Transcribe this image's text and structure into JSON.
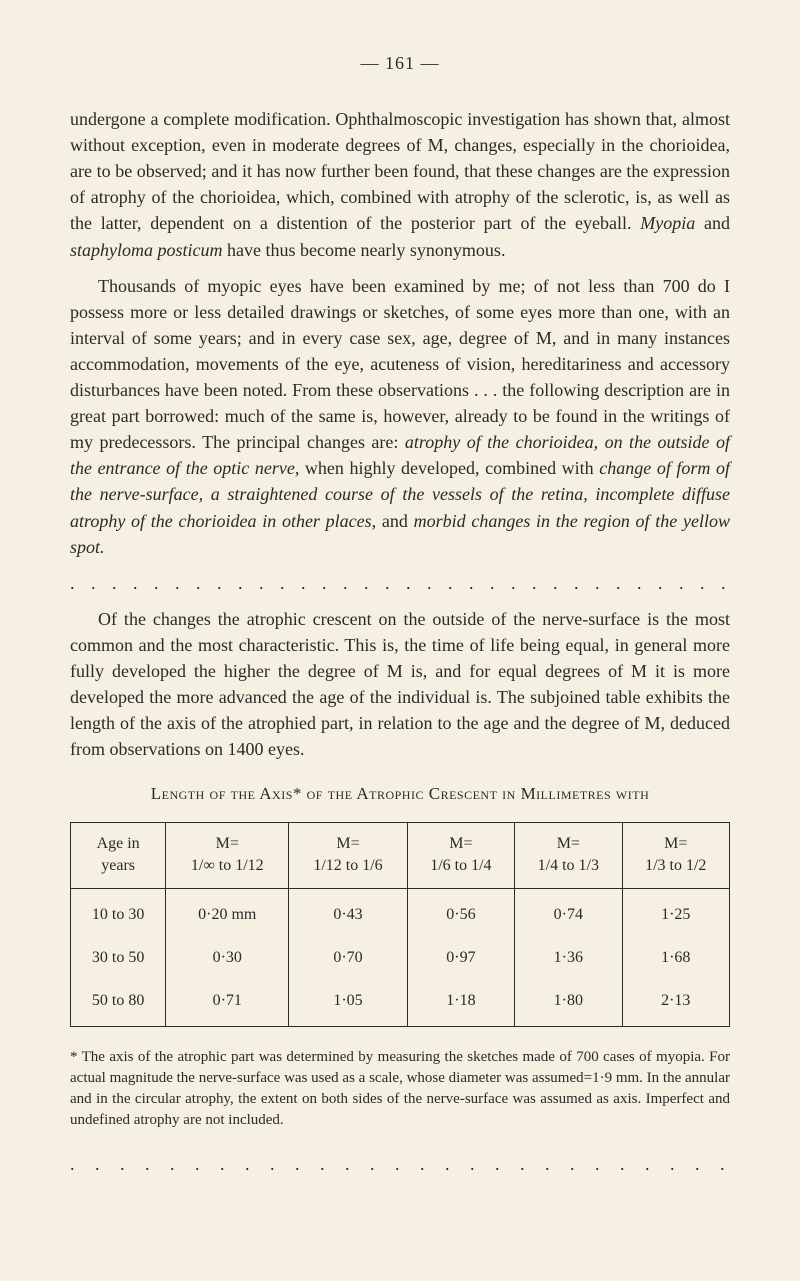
{
  "page_number": "— 161 —",
  "para1": "undergone a complete modification. Ophthalmoscopic investigation has shown that, almost without exception, even in moderate degrees of M, changes, especially in the chorioidea, are to be observed; and it has now further been found, that these changes are the expression of atrophy of the chorioidea, which, combined with atrophy of the sclerotic, is, as well as the latter, dependent on a distention of the posterior part of the eyeball. ",
  "para1_italic1": "Myopia",
  "para1_mid": " and ",
  "para1_italic2": "staphyloma posticum",
  "para1_end": " have thus become nearly synonymous.",
  "para2_start": "Thousands of myopic eyes have been examined by me; of not less than 700 do I possess more or less detailed drawings or sketches, of some eyes more than one, with an interval of some years; and in every case sex, age, degree of M, and in many instances accommodation, movements of the eye, acuteness of vision, hereditariness and accessory disturbances have been noted. From these observations . . . the following description are in great part borrowed: much of the same is, however, already to be found in the writings of my predecessors. The principal changes are: ",
  "para2_italic1": "atrophy of the chorioidea, on the outside of the entrance of the optic nerve,",
  "para2_mid1": " when highly developed, combined with ",
  "para2_italic2": "change of form of the nerve-surface, a straightened course of the vessels of the retina, incomplete diffuse atrophy of the chorioidea in other places,",
  "para2_mid2": " and ",
  "para2_italic3": "morbid changes in the region of the yellow spot.",
  "dots": ". . . . . . . . . . . . . . . . . . . . . . . . . . . . . . . .",
  "para3": "Of the changes the atrophic crescent on the outside of the nerve-surface is the most common and the most characteristic. This is, the time of life being equal, in general more fully developed the higher the degree of M is, and for equal degrees of M it is more developed the more advanced the age of the individual is. The subjoined table exhibits the length of the axis of the atrophied part, in relation to the age and the degree of M, deduced from observations on 1400 eyes.",
  "table_title": "Length of the Axis* of the Atrophic Crescent in Millimetres with",
  "table": {
    "headers": [
      {
        "line1": "Age in",
        "line2": "years"
      },
      {
        "line1": "M=",
        "line2": "1/∞ to 1/12"
      },
      {
        "line1": "M=",
        "line2": "1/12 to 1/6"
      },
      {
        "line1": "M=",
        "line2": "1/6 to 1/4"
      },
      {
        "line1": "M=",
        "line2": "1/4 to 1/3"
      },
      {
        "line1": "M=",
        "line2": "1/3 to 1/2"
      }
    ],
    "rows": [
      [
        "10 to 30",
        "0·20 mm",
        "0·43",
        "0·56",
        "0·74",
        "1·25"
      ],
      [
        "30 to 50",
        "0·30",
        "0·70",
        "0·97",
        "1·36",
        "1·68"
      ],
      [
        "50 to 80",
        "0·71",
        "1·05",
        "1·18",
        "1·80",
        "2·13"
      ]
    ]
  },
  "footnote": "* The axis of the atrophic part was determined by measuring the sketches made of 700 cases of myopia. For actual magnitude the nerve-surface was used as a scale, whose diameter was assumed=1·9 mm. In the annular and in the circular atrophy, the extent on both sides of the nerve-surface was assumed as axis. Imperfect and undefined atrophy are not included.",
  "dots_bottom": ". .  . .  . . . . . . . . . . . . . . . . . . . . . . . ."
}
